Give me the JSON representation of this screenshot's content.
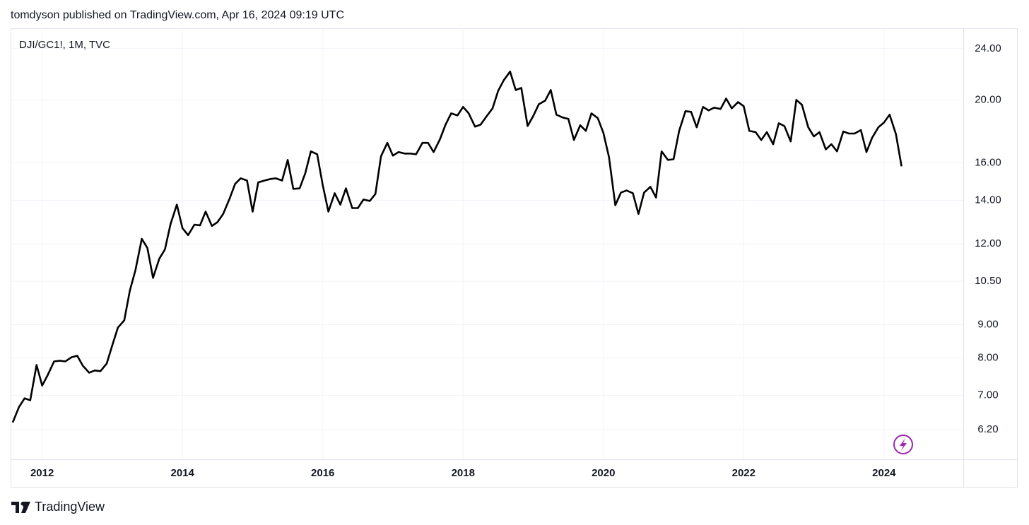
{
  "header": "tomdyson published on TradingView.com, Apr 16, 2024 09:19 UTC",
  "footer": "TradingView",
  "chart_data": {
    "type": "line",
    "title": "DJI/GC1!, 1M, TVC",
    "color": "#000000",
    "log_scale": true,
    "grid": true,
    "x": [
      2011.58,
      2011.67,
      2011.75,
      2011.83,
      2011.92,
      2012.0,
      2012.08,
      2012.17,
      2012.25,
      2012.33,
      2012.42,
      2012.5,
      2012.58,
      2012.67,
      2012.75,
      2012.83,
      2012.92,
      2013.0,
      2013.08,
      2013.17,
      2013.25,
      2013.33,
      2013.42,
      2013.5,
      2013.58,
      2013.67,
      2013.75,
      2013.83,
      2013.92,
      2014.0,
      2014.08,
      2014.17,
      2014.25,
      2014.33,
      2014.42,
      2014.5,
      2014.58,
      2014.67,
      2014.75,
      2014.83,
      2014.92,
      2015.0,
      2015.08,
      2015.17,
      2015.25,
      2015.33,
      2015.42,
      2015.5,
      2015.58,
      2015.67,
      2015.75,
      2015.83,
      2015.92,
      2016.0,
      2016.08,
      2016.17,
      2016.25,
      2016.33,
      2016.42,
      2016.5,
      2016.58,
      2016.67,
      2016.75,
      2016.83,
      2016.92,
      2017.0,
      2017.08,
      2017.17,
      2017.25,
      2017.33,
      2017.42,
      2017.5,
      2017.58,
      2017.67,
      2017.75,
      2017.83,
      2017.92,
      2018.0,
      2018.08,
      2018.17,
      2018.25,
      2018.33,
      2018.42,
      2018.5,
      2018.58,
      2018.67,
      2018.75,
      2018.83,
      2018.92,
      2019.0,
      2019.08,
      2019.17,
      2019.25,
      2019.33,
      2019.42,
      2019.5,
      2019.58,
      2019.67,
      2019.75,
      2019.83,
      2019.92,
      2020.0,
      2020.08,
      2020.17,
      2020.25,
      2020.33,
      2020.42,
      2020.5,
      2020.58,
      2020.67,
      2020.75,
      2020.83,
      2020.92,
      2021.0,
      2021.08,
      2021.17,
      2021.25,
      2021.33,
      2021.42,
      2021.5,
      2021.58,
      2021.67,
      2021.75,
      2021.83,
      2021.92,
      2022.0,
      2022.08,
      2022.17,
      2022.25,
      2022.33,
      2022.42,
      2022.5,
      2022.58,
      2022.67,
      2022.75,
      2022.83,
      2022.92,
      2023.0,
      2023.08,
      2023.17,
      2023.25,
      2023.33,
      2023.42,
      2023.5,
      2023.58,
      2023.67,
      2023.75,
      2023.83,
      2023.92,
      2024.0,
      2024.08,
      2024.17,
      2024.25
    ],
    "values": [
      6.36,
      6.72,
      6.93,
      6.88,
      7.8,
      7.25,
      7.53,
      7.9,
      7.92,
      7.9,
      8.02,
      8.06,
      7.78,
      7.59,
      7.65,
      7.63,
      7.84,
      8.37,
      8.91,
      9.14,
      10.16,
      10.93,
      12.21,
      11.82,
      10.63,
      11.38,
      11.76,
      12.87,
      13.79,
      12.68,
      12.37,
      12.84,
      12.81,
      13.45,
      12.78,
      12.96,
      13.34,
      14.07,
      14.84,
      15.14,
      15.02,
      13.45,
      14.92,
      15.02,
      15.1,
      15.14,
      15.02,
      16.16,
      14.58,
      14.61,
      15.41,
      16.66,
      16.49,
      14.77,
      13.45,
      14.36,
      13.79,
      14.61,
      13.62,
      13.62,
      14.04,
      13.97,
      14.32,
      16.37,
      17.17,
      16.41,
      16.62,
      16.53,
      16.53,
      16.49,
      17.17,
      17.17,
      16.62,
      17.39,
      18.32,
      19.07,
      18.93,
      19.51,
      19.07,
      18.19,
      18.32,
      18.84,
      19.41,
      20.66,
      21.45,
      22.12,
      20.72,
      20.87,
      18.23,
      18.89,
      19.7,
      19.95,
      20.72,
      18.98,
      18.79,
      18.7,
      17.35,
      18.28,
      17.92,
      19.07,
      18.75,
      17.79,
      16.32,
      13.76,
      14.39,
      14.5,
      14.36,
      13.34,
      14.39,
      14.69,
      14.14,
      16.66,
      16.16,
      16.2,
      17.92,
      19.22,
      19.17,
      18.15,
      19.51,
      19.27,
      19.46,
      19.37,
      20.1,
      19.41,
      19.85,
      19.56,
      17.92,
      17.84,
      17.35,
      17.84,
      17.09,
      18.41,
      18.23,
      17.26,
      20.0,
      19.66,
      18.15,
      17.57,
      17.84,
      16.78,
      17.09,
      16.66,
      17.88,
      17.75,
      17.75,
      17.97,
      16.62,
      17.48,
      18.15,
      18.46,
      18.98,
      17.71,
      15.8
    ],
    "xlim": [
      2011.55,
      2025.13
    ],
    "xticks": [
      2012,
      2014,
      2016,
      2018,
      2020,
      2022,
      2024
    ],
    "ylim": [
      5.58,
      25.8
    ],
    "yticks": [
      {
        "value": 6.2,
        "label": "6.20"
      },
      {
        "value": 7,
        "label": "7.00"
      },
      {
        "value": 8,
        "label": "8.00"
      },
      {
        "value": 9,
        "label": "9.00"
      },
      {
        "value": 10.5,
        "label": "10.50"
      },
      {
        "value": 12,
        "label": "12.00"
      },
      {
        "value": 14,
        "label": "14.00"
      },
      {
        "value": 16,
        "label": "16.00"
      },
      {
        "value": 20,
        "label": "20.00"
      },
      {
        "value": 24,
        "label": "24.00"
      }
    ]
  }
}
